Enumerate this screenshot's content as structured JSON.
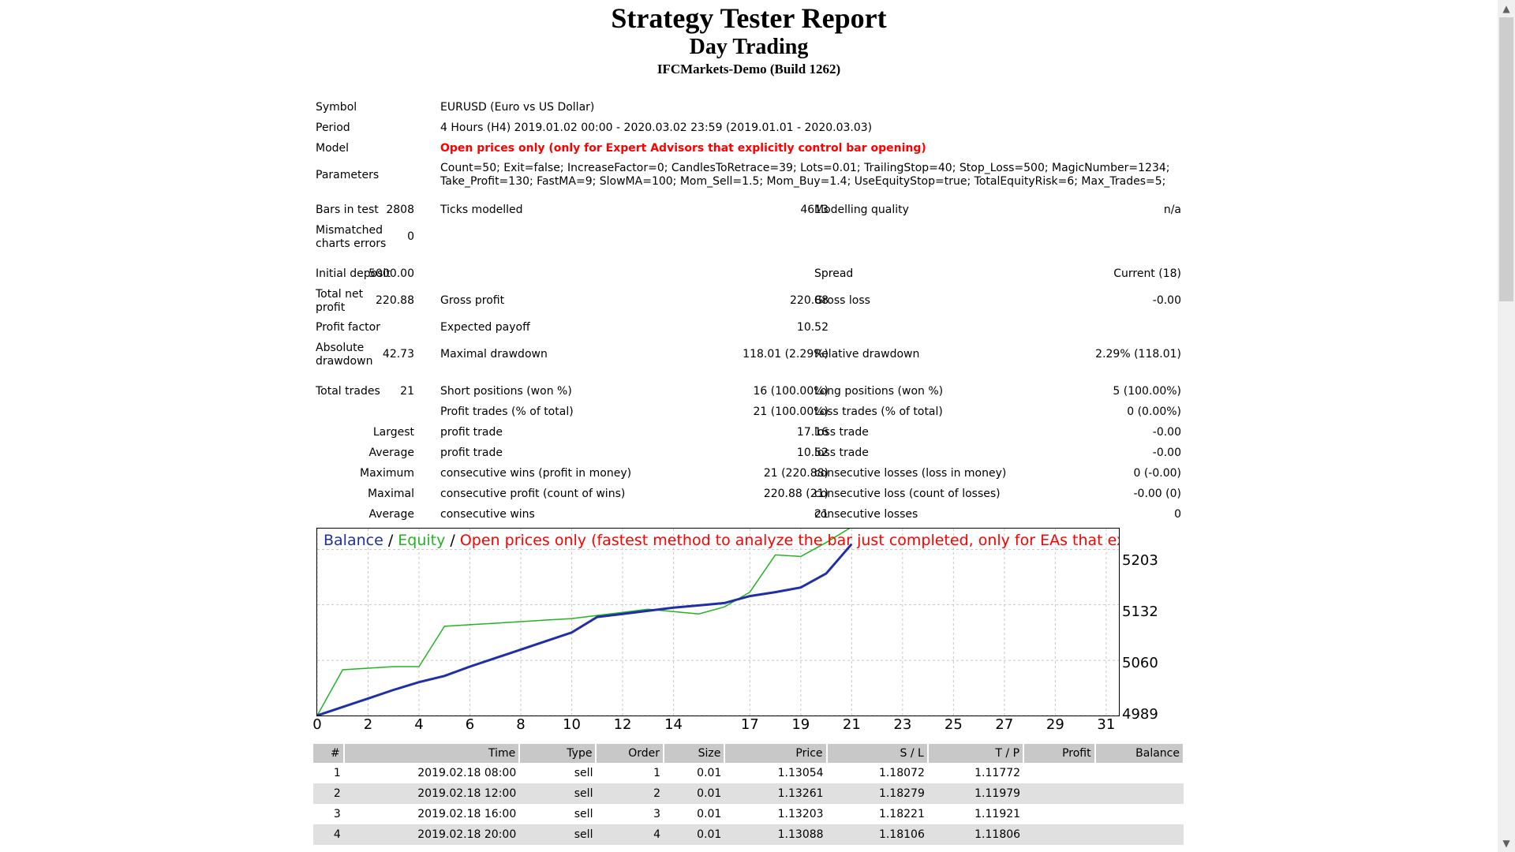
{
  "report": {
    "title": "Strategy Tester Report",
    "subtitle": "Day Trading",
    "server": "IFCMarkets-Demo (Build 1262)"
  },
  "summary": {
    "symbol_label": "Symbol",
    "symbol_value": "EURUSD (Euro vs US Dollar)",
    "period_label": "Period",
    "period_value": "4 Hours (H4) 2019.01.02 00:00 - 2020.03.02 23:59 (2019.01.01 - 2020.03.03)",
    "model_label": "Model",
    "model_value": "Open prices only (only for Expert Advisors that explicitly control bar opening)",
    "parameters_label": "Parameters",
    "parameters_line1": "Count=50; Exit=false; IncreaseFactor=0; CandlesToRetrace=39; Lots=0.01; TrailingStop=40; Stop_Loss=500; MagicNumber=1234;",
    "parameters_line2": "Take_Profit=130; FastMA=9; SlowMA=100; Mom_Sell=1.5; Mom_Buy=1.4; UseEquityStop=true; TotalEquityRisk=6; Max_Trades=5;",
    "bars_label": "Bars in test",
    "bars_value": "2808",
    "ticks_label": "Ticks modelled",
    "ticks_value": "4613",
    "quality_label": "Modelling quality",
    "quality_value": "n/a",
    "mismatch_label_1": "Mismatched",
    "mismatch_label_2": "charts errors",
    "mismatch_value": "0",
    "deposit_label": "Initial deposit",
    "deposit_value": "5000.00",
    "spread_label": "Spread",
    "spread_value": "Current (18)",
    "netprofit_label_1": "Total net",
    "netprofit_label_2": "profit",
    "netprofit_value": "220.88",
    "grossprofit_label": "Gross profit",
    "grossprofit_value": "220.88",
    "grossloss_label": "Gross loss",
    "grossloss_value": "-0.00",
    "pfactor_label": "Profit factor",
    "expected_label": "Expected payoff",
    "expected_value": "10.52",
    "absdd_label_1": "Absolute",
    "absdd_label_2": "drawdown",
    "absdd_value": "42.73",
    "maxdd_label": "Maximal drawdown",
    "maxdd_value": "118.01 (2.29%)",
    "reldd_label": "Relative drawdown",
    "reldd_value": "2.29% (118.01)",
    "totaltrades_label": "Total trades",
    "totaltrades_value": "21",
    "short_label": "Short positions (won %)",
    "short_value": "16 (100.00%)",
    "long_label": "Long positions (won %)",
    "long_value": "5 (100.00%)",
    "profittrades_label": "Profit trades (% of total)",
    "profittrades_value": "21 (100.00%)",
    "losstrades_label": "Loss trades (% of total)",
    "losstrades_value": "0 (0.00%)",
    "largest_label": "Largest",
    "largest_profit_label": "profit trade",
    "largest_profit_value": "17.16",
    "largest_loss_label": "loss trade",
    "largest_loss_value": "-0.00",
    "average_label": "Average",
    "average_profit_label": "profit trade",
    "average_profit_value": "10.52",
    "average_loss_label": "loss trade",
    "average_loss_value": "-0.00",
    "maximum_label": "Maximum",
    "maxwins_label": "consecutive wins (profit in money)",
    "maxwins_value": "21 (220.88)",
    "maxlosses_label": "consecutive losses (loss in money)",
    "maxlosses_value": "0 (-0.00)",
    "maximal_label": "Maximal",
    "maxprofit_label": "consecutive profit (count of wins)",
    "maxprofit_value": "220.88 (21)",
    "maxloss_label": "consecutive loss (count of losses)",
    "maxloss_value": "-0.00 (0)",
    "average2_label": "Average",
    "avgwins_label": "consecutive wins",
    "avgwins_value": "21",
    "avglosses_label": "consecutive losses",
    "avglosses_value": "0"
  },
  "chart_legend": {
    "balance": "Balance",
    "equity": "Equity",
    "sep": " / ",
    "model": "Open prices only (fastest method to analyze the bar just completed, only for EAs that explicitly control bar opening)"
  },
  "chart_data": {
    "type": "line",
    "y_ticks": [
      "5203",
      "5132",
      "5060",
      "4989"
    ],
    "x_ticks": [
      "0",
      "2",
      "4",
      "6",
      "8",
      "10",
      "12",
      "14",
      "17",
      "19",
      "21",
      "23",
      "25",
      "27",
      "29",
      "31"
    ],
    "ylim": [
      4989,
      5230
    ],
    "xlim": [
      0,
      31.5
    ],
    "series": [
      {
        "name": "Balance",
        "color": "#1f2fa8",
        "x": [
          0,
          1,
          2,
          3,
          4,
          5,
          6,
          7,
          8,
          9,
          10,
          11,
          12,
          13,
          14,
          15,
          16,
          17,
          18,
          19,
          20,
          21
        ],
        "y": [
          4989,
          5000,
          5011,
          5022,
          5032,
          5040,
          5052,
          5063,
          5074,
          5085,
          5096,
          5116,
          5120,
          5124,
          5128,
          5131,
          5134,
          5143,
          5148,
          5154,
          5172,
          5210
        ]
      },
      {
        "name": "Equity",
        "color": "#22b422",
        "x": [
          0,
          1,
          2,
          3,
          4,
          5,
          6,
          7,
          8,
          9,
          10,
          11,
          12,
          13,
          14,
          15,
          16,
          17,
          18,
          19,
          20,
          21
        ],
        "y": [
          4989,
          5048,
          5050,
          5052,
          5052,
          5104,
          5106,
          5108,
          5110,
          5112,
          5114,
          5118,
          5122,
          5126,
          5123,
          5120,
          5129,
          5148,
          5196,
          5194,
          5212,
          5232
        ]
      }
    ]
  },
  "trades": {
    "headers": [
      "#",
      "Time",
      "Type",
      "Order",
      "Size",
      "Price",
      "S / L",
      "T / P",
      "Profit",
      "Balance"
    ],
    "rows": [
      [
        "1",
        "2019.02.18 08:00",
        "sell",
        "1",
        "0.01",
        "1.13054",
        "1.18072",
        "1.11772",
        "",
        ""
      ],
      [
        "2",
        "2019.02.18 12:00",
        "sell",
        "2",
        "0.01",
        "1.13261",
        "1.18279",
        "1.11979",
        "",
        ""
      ],
      [
        "3",
        "2019.02.18 16:00",
        "sell",
        "3",
        "0.01",
        "1.13203",
        "1.18221",
        "1.11921",
        "",
        ""
      ],
      [
        "4",
        "2019.02.18 20:00",
        "sell",
        "4",
        "0.01",
        "1.13088",
        "1.18106",
        "1.11806",
        "",
        ""
      ]
    ]
  }
}
